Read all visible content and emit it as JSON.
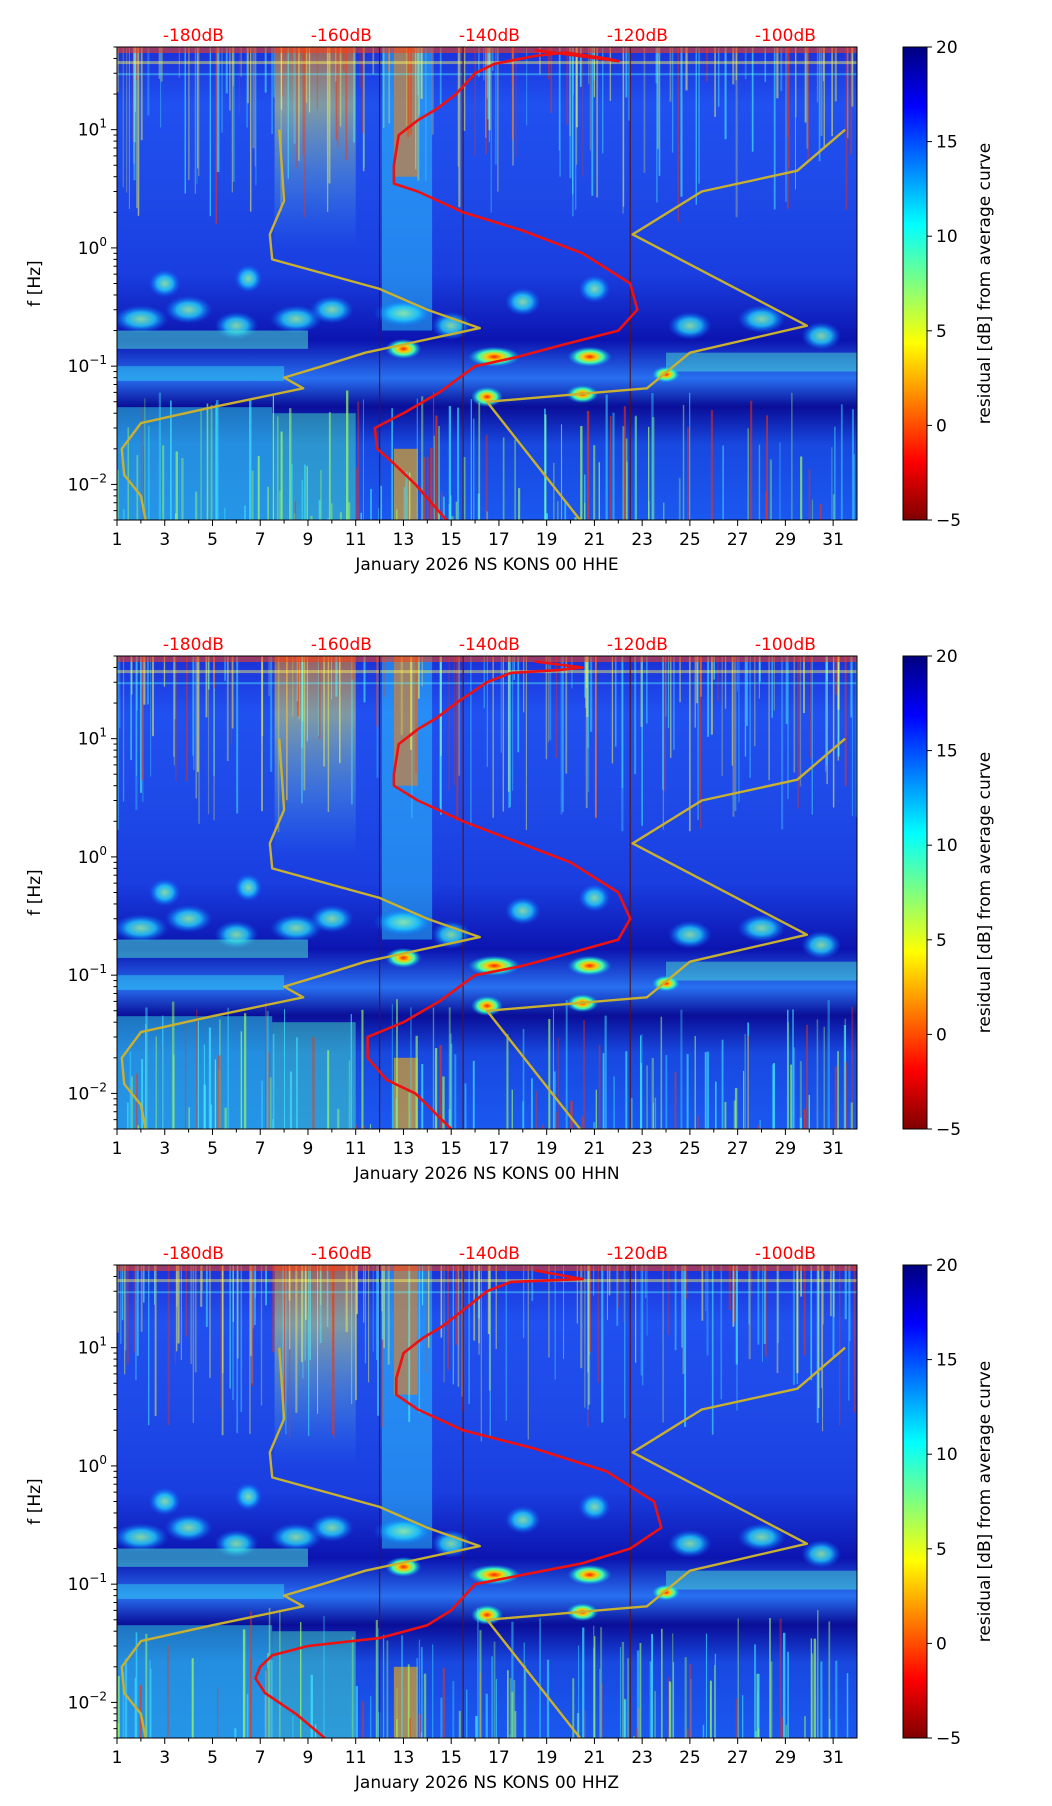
{
  "colormap": [
    "#00007f",
    "#0000ff",
    "#007fff",
    "#00ffff",
    "#7fff7f",
    "#ffff00",
    "#ff7f00",
    "#ff0000",
    "#7f0000"
  ],
  "colors": {
    "psd_curve": "#ee1111",
    "noise_model": "#c8b030",
    "top_labels": "#ff0000"
  },
  "chart_data": [
    {
      "type": "heatmap",
      "xlabel": "January 2026 NS KONS 00 HHE",
      "ylabel": "f [Hz]",
      "xlim": [
        1,
        32
      ],
      "ylim": [
        0.005,
        50
      ],
      "yscale": "log",
      "xticks": [
        1,
        3,
        5,
        7,
        9,
        11,
        13,
        15,
        17,
        19,
        21,
        23,
        25,
        27,
        29,
        31
      ],
      "yticks": [
        {
          "v": 0.01,
          "base": "10",
          "exp": "−2"
        },
        {
          "v": 0.1,
          "base": "10",
          "exp": "−1"
        },
        {
          "v": 1,
          "base": "10",
          "exp": "0"
        },
        {
          "v": 10,
          "base": "10",
          "exp": "1"
        }
      ],
      "top_axis_labels": [
        {
          "x": 4.2,
          "label": "-180dB"
        },
        {
          "x": 10.4,
          "label": "-160dB"
        },
        {
          "x": 16.6,
          "label": "-140dB"
        },
        {
          "x": 22.8,
          "label": "-120dB"
        },
        {
          "x": 29.0,
          "label": "-100dB"
        }
      ],
      "day_lines": [
        12,
        15.5,
        22.5
      ],
      "colorbar": {
        "label": "residual [dB] from average curve",
        "min": -5,
        "max": 20,
        "ticks": [
          -5,
          0,
          5,
          10,
          15,
          20
        ],
        "tick_labels": [
          "−5",
          "0",
          "5",
          "10",
          "15",
          "20"
        ]
      },
      "series": [
        {
          "role": "psd_curve",
          "points": [
            [
              14.8,
              0.005
            ],
            [
              13.5,
              0.01
            ],
            [
              12.6,
              0.015
            ],
            [
              11.9,
              0.02
            ],
            [
              11.8,
              0.03
            ],
            [
              13.0,
              0.04
            ],
            [
              14.5,
              0.06
            ],
            [
              16.0,
              0.1
            ],
            [
              17.8,
              0.12
            ],
            [
              19.6,
              0.15
            ],
            [
              22.0,
              0.2
            ],
            [
              22.8,
              0.3
            ],
            [
              22.5,
              0.5
            ],
            [
              20.5,
              0.9
            ],
            [
              18.0,
              1.4
            ],
            [
              15.5,
              2.0
            ],
            [
              13.6,
              3.0
            ],
            [
              12.6,
              3.5
            ],
            [
              12.6,
              5.0
            ],
            [
              12.8,
              9.0
            ],
            [
              13.6,
              12.0
            ],
            [
              14.4,
              15.0
            ],
            [
              15.2,
              20.0
            ],
            [
              16.0,
              30.0
            ],
            [
              16.8,
              36.0
            ],
            [
              18.5,
              42.0
            ],
            [
              19.8,
              45.0
            ],
            [
              21.5,
              40.0
            ],
            [
              22.0,
              38.0
            ],
            [
              18.5,
              47.0
            ]
          ]
        },
        {
          "role": "noise_model",
          "points": [
            [
              2.2,
              0.005
            ],
            [
              2.0,
              0.008
            ],
            [
              1.3,
              0.012
            ],
            [
              1.2,
              0.02
            ],
            [
              2.0,
              0.033
            ],
            [
              5.0,
              0.045
            ],
            [
              8.8,
              0.065
            ],
            [
              8.0,
              0.08
            ],
            [
              9.6,
              0.1
            ],
            [
              11.4,
              0.13
            ],
            [
              16.2,
              0.21
            ],
            [
              14.0,
              0.3
            ],
            [
              12.0,
              0.45
            ],
            [
              7.5,
              0.8
            ],
            [
              7.4,
              1.3
            ],
            [
              8.0,
              2.5
            ],
            [
              7.8,
              10.0
            ]
          ]
        },
        {
          "role": "noise_model",
          "points": [
            [
              20.4,
              0.005
            ],
            [
              16.5,
              0.05
            ],
            [
              23.2,
              0.065
            ],
            [
              25.0,
              0.13
            ],
            [
              29.9,
              0.22
            ],
            [
              22.6,
              1.3
            ],
            [
              25.5,
              3.0
            ],
            [
              29.5,
              4.5
            ],
            [
              31.5,
              10.0
            ]
          ]
        }
      ]
    },
    {
      "type": "heatmap",
      "xlabel": "January 2026 NS KONS 00 HHN",
      "ylabel": "f [Hz]",
      "xlim": [
        1,
        32
      ],
      "ylim": [
        0.005,
        50
      ],
      "yscale": "log",
      "xticks": [
        1,
        3,
        5,
        7,
        9,
        11,
        13,
        15,
        17,
        19,
        21,
        23,
        25,
        27,
        29,
        31
      ],
      "yticks": [
        {
          "v": 0.01,
          "base": "10",
          "exp": "−2"
        },
        {
          "v": 0.1,
          "base": "10",
          "exp": "−1"
        },
        {
          "v": 1,
          "base": "10",
          "exp": "0"
        },
        {
          "v": 10,
          "base": "10",
          "exp": "1"
        }
      ],
      "top_axis_labels": [
        {
          "x": 4.2,
          "label": "-180dB"
        },
        {
          "x": 10.4,
          "label": "-160dB"
        },
        {
          "x": 16.6,
          "label": "-140dB"
        },
        {
          "x": 22.8,
          "label": "-120dB"
        },
        {
          "x": 29.0,
          "label": "-100dB"
        }
      ],
      "day_lines": [
        12,
        15.5,
        22.5
      ],
      "colorbar": {
        "label": "residual [dB] from average curve",
        "min": -5,
        "max": 20,
        "ticks": [
          -5,
          0,
          5,
          10,
          15,
          20
        ],
        "tick_labels": [
          "−5",
          "0",
          "5",
          "10",
          "15",
          "20"
        ]
      },
      "series": [
        {
          "role": "psd_curve",
          "points": [
            [
              15.0,
              0.005
            ],
            [
              13.5,
              0.01
            ],
            [
              12.3,
              0.013
            ],
            [
              11.5,
              0.02
            ],
            [
              11.5,
              0.03
            ],
            [
              13.0,
              0.04
            ],
            [
              14.5,
              0.06
            ],
            [
              16.0,
              0.1
            ],
            [
              18.0,
              0.12
            ],
            [
              19.8,
              0.15
            ],
            [
              22.0,
              0.2
            ],
            [
              22.5,
              0.3
            ],
            [
              22.0,
              0.5
            ],
            [
              20.0,
              0.9
            ],
            [
              17.5,
              1.4
            ],
            [
              15.5,
              2.0
            ],
            [
              13.6,
              3.0
            ],
            [
              12.6,
              4.0
            ],
            [
              12.6,
              5.0
            ],
            [
              12.8,
              9.0
            ],
            [
              13.6,
              12.0
            ],
            [
              14.4,
              15.0
            ],
            [
              15.2,
              20.0
            ],
            [
              16.5,
              30.0
            ],
            [
              17.5,
              36.0
            ],
            [
              19.5,
              38.0
            ],
            [
              20.5,
              40.0
            ],
            [
              18.5,
              45.0
            ]
          ]
        },
        {
          "role": "noise_model",
          "points": [
            [
              2.2,
              0.005
            ],
            [
              2.0,
              0.008
            ],
            [
              1.3,
              0.012
            ],
            [
              1.2,
              0.02
            ],
            [
              2.0,
              0.033
            ],
            [
              5.0,
              0.045
            ],
            [
              8.8,
              0.065
            ],
            [
              8.0,
              0.08
            ],
            [
              9.6,
              0.1
            ],
            [
              11.4,
              0.13
            ],
            [
              16.2,
              0.21
            ],
            [
              14.0,
              0.3
            ],
            [
              12.0,
              0.45
            ],
            [
              7.5,
              0.8
            ],
            [
              7.4,
              1.3
            ],
            [
              8.0,
              2.5
            ],
            [
              7.8,
              10.0
            ]
          ]
        },
        {
          "role": "noise_model",
          "points": [
            [
              20.4,
              0.005
            ],
            [
              16.5,
              0.05
            ],
            [
              23.2,
              0.065
            ],
            [
              25.0,
              0.13
            ],
            [
              29.9,
              0.22
            ],
            [
              22.6,
              1.3
            ],
            [
              25.5,
              3.0
            ],
            [
              29.5,
              4.5
            ],
            [
              31.5,
              10.0
            ]
          ]
        }
      ]
    },
    {
      "type": "heatmap",
      "xlabel": "January 2026 NS KONS 00 HHZ",
      "ylabel": "f [Hz]",
      "xlim": [
        1,
        32
      ],
      "ylim": [
        0.005,
        50
      ],
      "yscale": "log",
      "xticks": [
        1,
        3,
        5,
        7,
        9,
        11,
        13,
        15,
        17,
        19,
        21,
        23,
        25,
        27,
        29,
        31
      ],
      "yticks": [
        {
          "v": 0.01,
          "base": "10",
          "exp": "−2"
        },
        {
          "v": 0.1,
          "base": "10",
          "exp": "−1"
        },
        {
          "v": 1,
          "base": "10",
          "exp": "0"
        },
        {
          "v": 10,
          "base": "10",
          "exp": "1"
        }
      ],
      "top_axis_labels": [
        {
          "x": 4.2,
          "label": "-180dB"
        },
        {
          "x": 10.4,
          "label": "-160dB"
        },
        {
          "x": 16.6,
          "label": "-140dB"
        },
        {
          "x": 22.8,
          "label": "-120dB"
        },
        {
          "x": 29.0,
          "label": "-100dB"
        }
      ],
      "day_lines": [
        12,
        15.5,
        22.5
      ],
      "colorbar": {
        "label": "residual [dB] from average curve",
        "min": -5,
        "max": 20,
        "ticks": [
          -5,
          0,
          5,
          10,
          15,
          20
        ],
        "tick_labels": [
          "−5",
          "0",
          "5",
          "10",
          "15",
          "20"
        ]
      },
      "series": [
        {
          "role": "psd_curve",
          "points": [
            [
              9.7,
              0.005
            ],
            [
              8.5,
              0.008
            ],
            [
              7.2,
              0.012
            ],
            [
              6.8,
              0.016
            ],
            [
              7.0,
              0.02
            ],
            [
              7.5,
              0.025
            ],
            [
              9.0,
              0.03
            ],
            [
              12.0,
              0.035
            ],
            [
              14.0,
              0.045
            ],
            [
              15.0,
              0.06
            ],
            [
              16.0,
              0.1
            ],
            [
              18.0,
              0.12
            ],
            [
              20.5,
              0.15
            ],
            [
              22.5,
              0.2
            ],
            [
              23.8,
              0.3
            ],
            [
              23.5,
              0.5
            ],
            [
              21.5,
              0.9
            ],
            [
              18.5,
              1.4
            ],
            [
              15.5,
              2.0
            ],
            [
              13.6,
              3.0
            ],
            [
              12.7,
              4.0
            ],
            [
              12.7,
              5.5
            ],
            [
              13.0,
              9.0
            ],
            [
              13.8,
              12.0
            ],
            [
              14.6,
              15.0
            ],
            [
              15.4,
              20.0
            ],
            [
              16.5,
              30.0
            ],
            [
              17.5,
              36.0
            ],
            [
              20.5,
              38.0
            ],
            [
              18.5,
              45.0
            ]
          ]
        },
        {
          "role": "noise_model",
          "points": [
            [
              2.2,
              0.005
            ],
            [
              2.0,
              0.008
            ],
            [
              1.3,
              0.012
            ],
            [
              1.2,
              0.02
            ],
            [
              2.0,
              0.033
            ],
            [
              5.0,
              0.045
            ],
            [
              8.8,
              0.065
            ],
            [
              8.0,
              0.08
            ],
            [
              9.6,
              0.1
            ],
            [
              11.4,
              0.13
            ],
            [
              16.2,
              0.21
            ],
            [
              14.0,
              0.3
            ],
            [
              12.0,
              0.45
            ],
            [
              7.5,
              0.8
            ],
            [
              7.4,
              1.3
            ],
            [
              8.0,
              2.5
            ],
            [
              7.8,
              10.0
            ]
          ]
        },
        {
          "role": "noise_model",
          "points": [
            [
              20.4,
              0.005
            ],
            [
              16.5,
              0.05
            ],
            [
              23.2,
              0.065
            ],
            [
              25.0,
              0.13
            ],
            [
              29.9,
              0.22
            ],
            [
              22.6,
              1.3
            ],
            [
              25.5,
              3.0
            ],
            [
              29.5,
              4.5
            ],
            [
              31.5,
              10.0
            ]
          ]
        }
      ]
    }
  ]
}
